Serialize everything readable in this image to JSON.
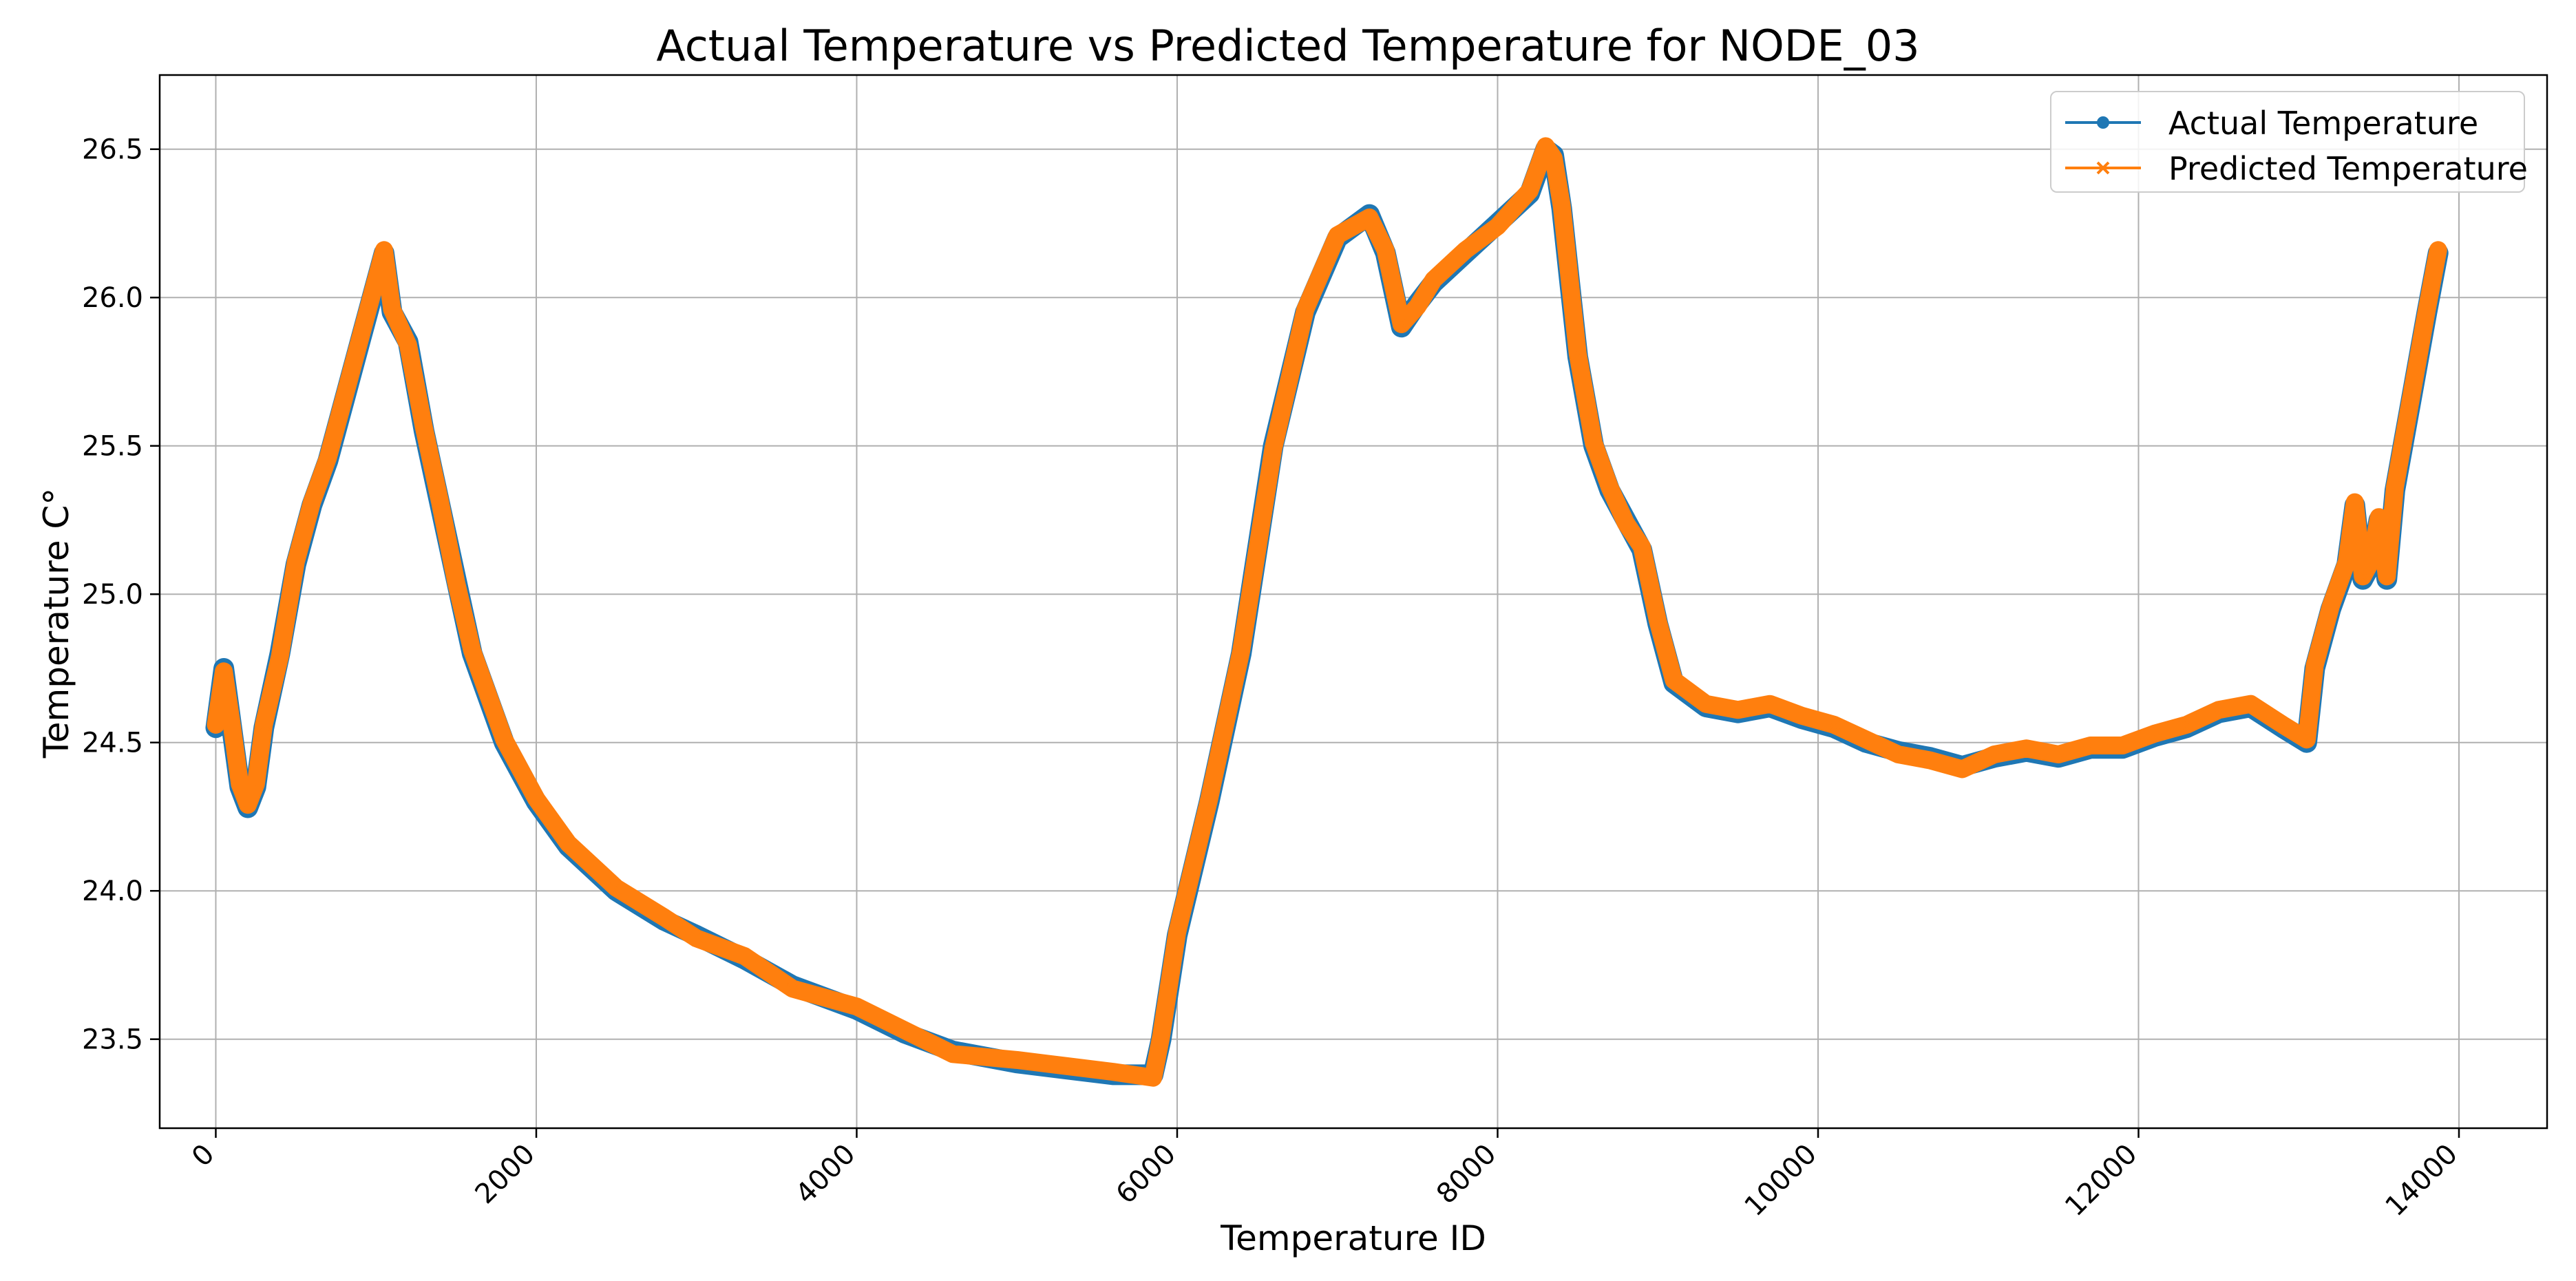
{
  "chart_data": {
    "type": "line",
    "title": "Actual Temperature vs Predicted Temperature for NODE_03",
    "xlabel": "Temperature ID",
    "ylabel": "Temperature C°",
    "xlim": [
      -350,
      14550
    ],
    "ylim": [
      23.2,
      26.75
    ],
    "xticks": [
      0,
      2000,
      4000,
      6000,
      8000,
      10000,
      12000,
      14000
    ],
    "xtick_labels": [
      "0",
      "2000",
      "4000",
      "6000",
      "8000",
      "10000",
      "12000",
      "14000"
    ],
    "yticks": [
      23.5,
      24.0,
      24.5,
      25.0,
      25.5,
      26.0,
      26.5
    ],
    "ytick_labels": [
      "23.5",
      "24.0",
      "24.5",
      "25.0",
      "25.5",
      "26.0",
      "26.5"
    ],
    "grid": true,
    "legend_location": "top-right",
    "series": [
      {
        "name": "Actual Temperature",
        "color": "#1f77b4",
        "marker": "circle",
        "x": [
          0,
          50,
          100,
          150,
          200,
          250,
          300,
          400,
          500,
          600,
          700,
          800,
          900,
          1000,
          1050,
          1100,
          1200,
          1300,
          1400,
          1500,
          1600,
          1800,
          2000,
          2200,
          2500,
          2800,
          3000,
          3300,
          3600,
          4000,
          4300,
          4600,
          5000,
          5300,
          5600,
          5850,
          5900,
          6000,
          6200,
          6400,
          6600,
          6800,
          7000,
          7200,
          7300,
          7400,
          7500,
          7600,
          7800,
          8000,
          8200,
          8300,
          8350,
          8400,
          8450,
          8500,
          8600,
          8700,
          8800,
          8900,
          9000,
          9100,
          9300,
          9500,
          9700,
          9900,
          10100,
          10300,
          10500,
          10700,
          10900,
          11100,
          11300,
          11500,
          11700,
          11900,
          12100,
          12300,
          12500,
          12700,
          12900,
          13050,
          13100,
          13200,
          13300,
          13350,
          13400,
          13450,
          13500,
          13550,
          13600,
          13700,
          13800,
          13870
        ],
        "y": [
          24.55,
          24.75,
          24.55,
          24.35,
          24.28,
          24.35,
          24.55,
          24.8,
          25.1,
          25.3,
          25.45,
          25.65,
          25.85,
          26.05,
          26.15,
          25.95,
          25.85,
          25.55,
          25.3,
          25.05,
          24.8,
          24.5,
          24.3,
          24.15,
          24.0,
          23.9,
          23.85,
          23.77,
          23.68,
          23.6,
          23.52,
          23.46,
          23.42,
          23.4,
          23.38,
          23.38,
          23.5,
          23.85,
          24.3,
          24.8,
          25.5,
          25.95,
          26.2,
          26.28,
          26.15,
          25.9,
          25.98,
          26.05,
          26.15,
          26.25,
          26.35,
          26.5,
          26.48,
          26.3,
          26.05,
          25.8,
          25.5,
          25.35,
          25.25,
          25.15,
          24.9,
          24.7,
          24.62,
          24.6,
          24.62,
          24.58,
          24.55,
          24.5,
          24.47,
          24.45,
          24.42,
          24.45,
          24.47,
          24.45,
          24.48,
          24.48,
          24.52,
          24.55,
          24.6,
          24.62,
          24.55,
          24.5,
          24.75,
          24.95,
          25.1,
          25.3,
          25.05,
          25.1,
          25.25,
          25.05,
          25.35,
          25.65,
          25.95,
          26.15
        ]
      },
      {
        "name": "Predicted Temperature",
        "color": "#ff7f0e",
        "marker": "x",
        "x": [
          0,
          50,
          100,
          150,
          200,
          250,
          300,
          400,
          500,
          600,
          700,
          800,
          900,
          1000,
          1050,
          1100,
          1200,
          1300,
          1400,
          1500,
          1600,
          1800,
          2000,
          2200,
          2500,
          2800,
          3000,
          3300,
          3600,
          4000,
          4300,
          4600,
          5000,
          5300,
          5600,
          5850,
          5900,
          6000,
          6200,
          6400,
          6600,
          6800,
          7000,
          7200,
          7300,
          7400,
          7500,
          7600,
          7800,
          8000,
          8200,
          8300,
          8350,
          8400,
          8450,
          8500,
          8600,
          8700,
          8800,
          8900,
          9000,
          9100,
          9300,
          9500,
          9700,
          9900,
          10100,
          10300,
          10500,
          10700,
          10900,
          11100,
          11300,
          11500,
          11700,
          11900,
          12100,
          12300,
          12500,
          12700,
          12900,
          13050,
          13100,
          13200,
          13300,
          13350,
          13400,
          13450,
          13500,
          13550,
          13600,
          13700,
          13800,
          13870
        ],
        "y": [
          24.56,
          24.74,
          24.56,
          24.36,
          24.29,
          24.36,
          24.56,
          24.79,
          25.11,
          25.31,
          25.46,
          25.66,
          25.86,
          26.06,
          26.16,
          25.96,
          25.84,
          25.56,
          25.31,
          25.04,
          24.81,
          24.51,
          24.31,
          24.16,
          24.01,
          23.91,
          23.84,
          23.78,
          23.67,
          23.61,
          23.53,
          23.45,
          23.43,
          23.41,
          23.39,
          23.37,
          23.51,
          23.86,
          24.31,
          24.81,
          25.49,
          25.96,
          26.21,
          26.27,
          26.16,
          25.91,
          25.97,
          26.06,
          26.16,
          26.24,
          26.36,
          26.51,
          26.47,
          26.31,
          26.06,
          25.81,
          25.51,
          25.36,
          25.24,
          25.16,
          24.91,
          24.71,
          24.63,
          24.61,
          24.63,
          24.59,
          24.56,
          24.51,
          24.46,
          24.44,
          24.41,
          24.46,
          24.48,
          24.46,
          24.49,
          24.49,
          24.53,
          24.56,
          24.61,
          24.63,
          24.56,
          24.51,
          24.76,
          24.96,
          25.11,
          25.31,
          25.06,
          25.11,
          25.26,
          25.06,
          25.36,
          25.66,
          25.96,
          26.16
        ]
      }
    ]
  }
}
